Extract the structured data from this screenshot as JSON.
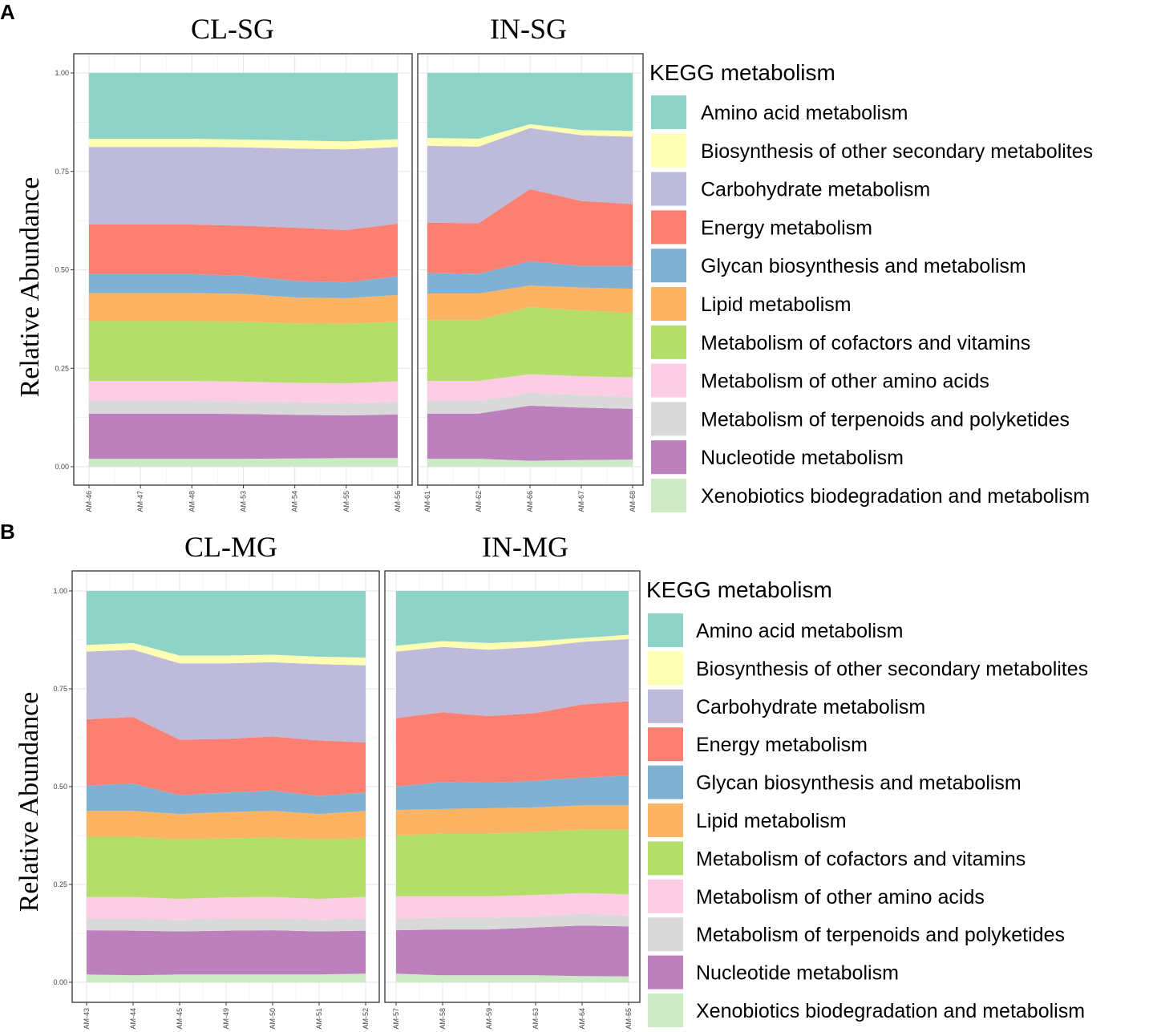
{
  "figure": {
    "panel_letters": [
      "A",
      "B"
    ]
  },
  "colors": {
    "Amino acid metabolism": "#8dd3c7",
    "Biosynthesis of other secondary metabolites": "#ffffb3",
    "Carbohydrate metabolism": "#bebada",
    "Energy metabolism": "#fb8072",
    "Glycan biosynthesis and metabolism": "#80b1d3",
    "Lipid metabolism": "#fdb462",
    "Metabolism of cofactors and vitamins": "#b3de69",
    "Metabolism of other amino acids": "#fccde5",
    "Metabolism of terpenoids and polyketides": "#d9d9d9",
    "Nucleotide metabolism": "#bc80bd",
    "Xenobiotics biodegradation and metabolism": "#ccebc5"
  },
  "chart_data": [
    {
      "type": "area",
      "panel": "A",
      "stacked": true,
      "ylabel": "Relative Abundance",
      "xlabel": "",
      "ylim": [
        0,
        1
      ],
      "yticks": [
        "0.00",
        "0.25",
        "0.50",
        "0.75",
        "1.00"
      ],
      "legend_title": "KEGG metabolism",
      "categories": [
        "Amino acid metabolism",
        "Biosynthesis of other secondary metabolites",
        "Carbohydrate metabolism",
        "Energy metabolism",
        "Glycan biosynthesis and metabolism",
        "Lipid metabolism",
        "Metabolism of cofactors and vitamins",
        "Metabolism of other amino acids",
        "Metabolism of terpenoids and polyketides",
        "Nucleotide metabolism",
        "Xenobiotics biodegradation and metabolism"
      ],
      "facets": [
        {
          "title": "CL-SG",
          "x": [
            "AM-46",
            "AM-47",
            "AM-48",
            "AM-53",
            "AM-54",
            "AM-55",
            "AM-56"
          ],
          "cumulative_tops": [
            [
              0.02,
              0.02,
              0.02,
              0.02,
              0.021,
              0.022,
              0.022
            ],
            [
              0.135,
              0.135,
              0.135,
              0.134,
              0.132,
              0.13,
              0.133
            ],
            [
              0.167,
              0.167,
              0.167,
              0.166,
              0.164,
              0.162,
              0.165
            ],
            [
              0.218,
              0.218,
              0.218,
              0.216,
              0.213,
              0.212,
              0.217
            ],
            [
              0.37,
              0.37,
              0.37,
              0.368,
              0.364,
              0.363,
              0.368
            ],
            [
              0.441,
              0.441,
              0.441,
              0.439,
              0.43,
              0.428,
              0.436
            ],
            [
              0.489,
              0.489,
              0.489,
              0.485,
              0.472,
              0.468,
              0.484
            ],
            [
              0.615,
              0.615,
              0.615,
              0.612,
              0.607,
              0.601,
              0.617
            ],
            [
              0.812,
              0.812,
              0.812,
              0.811,
              0.808,
              0.806,
              0.812
            ],
            [
              0.833,
              0.833,
              0.833,
              0.831,
              0.829,
              0.826,
              0.832
            ],
            [
              1.0,
              1.0,
              1.0,
              1.0,
              1.0,
              1.0,
              1.0
            ]
          ]
        },
        {
          "title": "IN-SG",
          "x": [
            "AM-61",
            "AM-62",
            "AM-66",
            "AM-67",
            "AM-68"
          ],
          "cumulative_tops": [
            [
              0.02,
              0.02,
              0.015,
              0.017,
              0.018
            ],
            [
              0.135,
              0.135,
              0.155,
              0.15,
              0.147
            ],
            [
              0.167,
              0.167,
              0.187,
              0.182,
              0.177
            ],
            [
              0.218,
              0.218,
              0.235,
              0.23,
              0.227
            ],
            [
              0.372,
              0.372,
              0.405,
              0.397,
              0.39
            ],
            [
              0.44,
              0.44,
              0.46,
              0.455,
              0.452
            ],
            [
              0.492,
              0.49,
              0.522,
              0.51,
              0.51
            ],
            [
              0.62,
              0.618,
              0.705,
              0.675,
              0.667
            ],
            [
              0.815,
              0.813,
              0.86,
              0.842,
              0.838
            ],
            [
              0.835,
              0.833,
              0.87,
              0.855,
              0.853
            ],
            [
              1.0,
              1.0,
              1.0,
              1.0,
              1.0
            ]
          ]
        }
      ]
    },
    {
      "type": "area",
      "panel": "B",
      "stacked": true,
      "ylabel": "Relative Abundance",
      "xlabel": "",
      "ylim": [
        0,
        1
      ],
      "yticks": [
        "0.00",
        "0.25",
        "0.50",
        "0.75",
        "1.00"
      ],
      "legend_title": "KEGG metabolism",
      "categories": [
        "Amino acid metabolism",
        "Biosynthesis of other secondary metabolites",
        "Carbohydrate metabolism",
        "Energy metabolism",
        "Glycan biosynthesis and metabolism",
        "Lipid metabolism",
        "Metabolism of cofactors and vitamins",
        "Metabolism of other amino acids",
        "Metabolism of terpenoids and polyketides",
        "Nucleotide metabolism",
        "Xenobiotics biodegradation and metabolism"
      ],
      "facets": [
        {
          "title": "CL-MG",
          "x": [
            "AM-43",
            "AM-44",
            "AM-45",
            "AM-49",
            "AM-50",
            "AM-51",
            "AM-52"
          ],
          "cumulative_tops": [
            [
              0.02,
              0.018,
              0.02,
              0.02,
              0.02,
              0.02,
              0.022
            ],
            [
              0.133,
              0.132,
              0.13,
              0.132,
              0.133,
              0.13,
              0.132
            ],
            [
              0.162,
              0.162,
              0.16,
              0.162,
              0.163,
              0.16,
              0.162
            ],
            [
              0.218,
              0.218,
              0.213,
              0.217,
              0.218,
              0.213,
              0.218
            ],
            [
              0.372,
              0.372,
              0.365,
              0.368,
              0.37,
              0.365,
              0.368
            ],
            [
              0.438,
              0.438,
              0.43,
              0.435,
              0.438,
              0.43,
              0.438
            ],
            [
              0.503,
              0.508,
              0.478,
              0.485,
              0.49,
              0.476,
              0.485
            ],
            [
              0.672,
              0.678,
              0.62,
              0.622,
              0.628,
              0.618,
              0.613
            ],
            [
              0.845,
              0.85,
              0.815,
              0.815,
              0.818,
              0.813,
              0.81
            ],
            [
              0.862,
              0.867,
              0.835,
              0.835,
              0.837,
              0.832,
              0.83
            ],
            [
              1.0,
              1.0,
              1.0,
              1.0,
              1.0,
              1.0,
              1.0
            ]
          ]
        },
        {
          "title": "IN-MG",
          "x": [
            "AM-57",
            "AM-58",
            "AM-59",
            "AM-63",
            "AM-64",
            "AM-65"
          ],
          "cumulative_tops": [
            [
              0.022,
              0.018,
              0.018,
              0.018,
              0.016,
              0.015
            ],
            [
              0.133,
              0.135,
              0.135,
              0.14,
              0.145,
              0.143
            ],
            [
              0.163,
              0.165,
              0.165,
              0.168,
              0.175,
              0.17
            ],
            [
              0.22,
              0.22,
              0.22,
              0.223,
              0.228,
              0.225
            ],
            [
              0.375,
              0.38,
              0.38,
              0.385,
              0.39,
              0.39
            ],
            [
              0.44,
              0.443,
              0.445,
              0.447,
              0.452,
              0.452
            ],
            [
              0.5,
              0.512,
              0.51,
              0.515,
              0.523,
              0.528
            ],
            [
              0.675,
              0.69,
              0.68,
              0.688,
              0.71,
              0.718
            ],
            [
              0.845,
              0.857,
              0.85,
              0.857,
              0.87,
              0.877
            ],
            [
              0.86,
              0.872,
              0.867,
              0.872,
              0.88,
              0.888
            ],
            [
              1.0,
              1.0,
              1.0,
              1.0,
              1.0,
              1.0
            ]
          ]
        }
      ]
    }
  ]
}
